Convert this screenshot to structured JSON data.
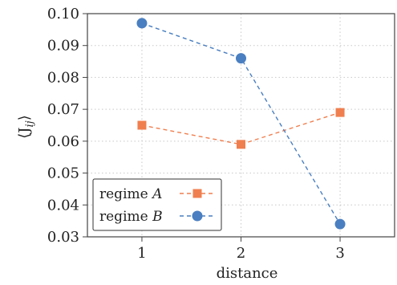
{
  "chart_data": {
    "type": "line",
    "x": [
      1,
      2,
      3
    ],
    "xlabel": "distance",
    "ylabel": "⟨J",
    "ylabel_subscript": "ij",
    "ylabel_close": "⟩",
    "xlim": [
      0.45,
      3.55
    ],
    "ylim": [
      0.03,
      0.1
    ],
    "xticks": [
      "1",
      "2",
      "3"
    ],
    "yticks": [
      "0.03",
      "0.04",
      "0.05",
      "0.06",
      "0.07",
      "0.08",
      "0.09",
      "0.10"
    ],
    "grid": true,
    "legend_position": "lower-left",
    "series": [
      {
        "name_prefix": "regime ",
        "name_symbol": "A",
        "marker": "square",
        "color": "#f07f4f",
        "values": [
          0.065,
          0.059,
          0.069
        ]
      },
      {
        "name_prefix": "regime ",
        "name_symbol": "B",
        "marker": "circle",
        "color": "#4a7fc1",
        "values": [
          0.097,
          0.086,
          0.034
        ]
      }
    ]
  }
}
